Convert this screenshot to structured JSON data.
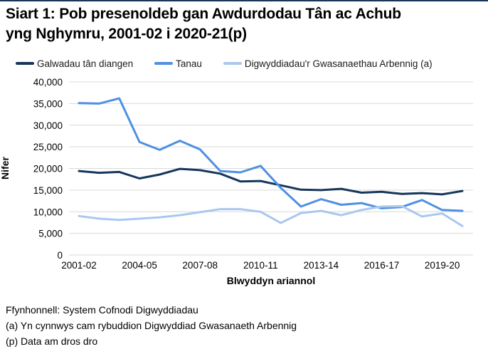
{
  "page": {
    "title_lines": [
      "Siart 1: Pob presenoldeb gan Awdurdodau Tân ac Achub",
      "yng Nghymru, 2001-02 i 2020-21(p)"
    ],
    "accent_color": "#16365c"
  },
  "footnotes": {
    "source": "Ffynhonnell: System Cofnodi Digwyddiadau",
    "note_a": "(a) Yn cynnwys cam rybuddion Digwyddiad Gwasanaeth Arbennig",
    "note_p": "(p) Data am dros dro"
  },
  "chart_data": {
    "type": "line",
    "title": "Siart 1: Pob presenoldeb gan Awdurdodau Tân ac Achub yng Nghymru, 2001-02 i 2020-21(p)",
    "xlabel": "Blwyddyn ariannol",
    "ylabel": "Nifer",
    "ylim": [
      0,
      40000
    ],
    "ytick_step": 5000,
    "ytick_labels": [
      "0",
      "5,000",
      "10,000",
      "15,000",
      "20,000",
      "25,000",
      "30,000",
      "35,000",
      "40,000"
    ],
    "xtick_every": 3,
    "grid": true,
    "legend_position": "top",
    "gridline_color": "#d9d9d9",
    "categories": [
      "2001-02",
      "2002-03",
      "2003-04",
      "2004-05",
      "2005-06",
      "2006-07",
      "2007-08",
      "2008-09",
      "2009-10",
      "2010-11",
      "2011-12",
      "2012-13",
      "2013-14",
      "2014-15",
      "2015-16",
      "2016-17",
      "2017-18",
      "2018-19",
      "2019-20",
      "2020-21"
    ],
    "series": [
      {
        "name": "Galwadau tân diangen",
        "color": "#16365c",
        "values": [
          19400,
          19000,
          19200,
          17700,
          18600,
          19900,
          19600,
          18800,
          17000,
          17100,
          16100,
          15100,
          15000,
          15300,
          14400,
          14600,
          14100,
          14300,
          14000,
          14800
        ]
      },
      {
        "name": "Tanau",
        "color": "#4e90e1",
        "values": [
          35100,
          35000,
          36200,
          26100,
          24300,
          26400,
          24400,
          19400,
          19100,
          20600,
          15500,
          11200,
          12900,
          11600,
          12000,
          10800,
          11100,
          12700,
          10400,
          10200
        ]
      },
      {
        "name": "Digwyddiadau'r Gwasanaethau Arbennig (a)",
        "color": "#a9c8ef",
        "values": [
          9000,
          8400,
          8100,
          8400,
          8700,
          9200,
          9900,
          10600,
          10600,
          10000,
          7400,
          9700,
          10200,
          9200,
          10400,
          11200,
          11300,
          8900,
          9600,
          6700
        ]
      }
    ]
  }
}
